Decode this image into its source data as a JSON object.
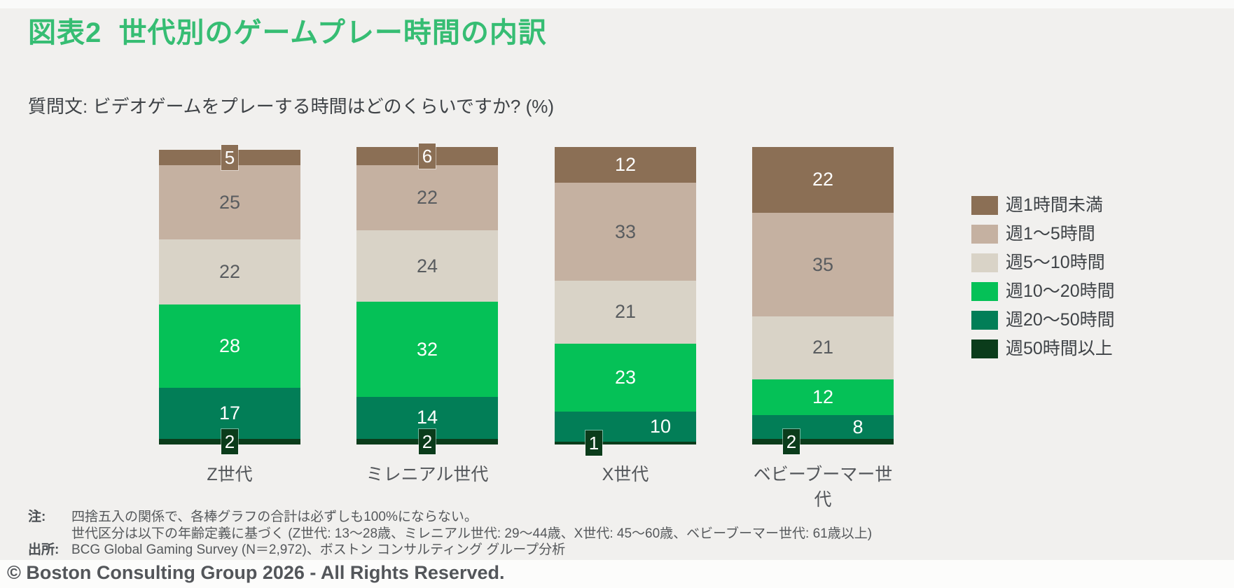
{
  "header": {
    "figure_title": "図表2  世代別のゲームプレー時間の内訳",
    "question_text": "質問文: ビデオゲームをプレーする時間はどのくらいですか? (%)"
  },
  "colors": {
    "title_green": "#36bd73",
    "page_background": "#f1f0ee",
    "footer_background": "#fcfcfb",
    "dark_value_label": "#595c5f",
    "light_value_label": "#ffffff"
  },
  "chart_data": {
    "type": "bar",
    "variant": "stacked-100",
    "orientation": "vertical",
    "unit": "%",
    "value_labels": true,
    "grid": false,
    "axes_visible": false,
    "ylim": [
      0,
      100
    ],
    "legend_position": "right",
    "categories": [
      "Z世代",
      "ミレニアル世代",
      "X世代",
      "ベビーブーマー世代"
    ],
    "series": [
      {
        "name": "週1時間未満",
        "color": "#8b6f55",
        "label_color": "#ffffff",
        "values": [
          5,
          6,
          12,
          22
        ]
      },
      {
        "name": "週1～5時間",
        "color": "#c5b1a1",
        "label_color": "#595c5f",
        "values": [
          25,
          22,
          33,
          35
        ]
      },
      {
        "name": "週5～10時間",
        "color": "#d9d3c7",
        "label_color": "#595c5f",
        "values": [
          22,
          24,
          21,
          21
        ]
      },
      {
        "name": "週10～20時間",
        "color": "#05c157",
        "label_color": "#ffffff",
        "values": [
          28,
          32,
          23,
          12
        ]
      },
      {
        "name": "週20～50時間",
        "color": "#027e57",
        "label_color": "#ffffff",
        "values": [
          17,
          14,
          10,
          8
        ]
      },
      {
        "name": "週50時間以上",
        "color": "#0b3c1b",
        "label_color": "#ffffff",
        "values": [
          2,
          2,
          1,
          2
        ]
      }
    ]
  },
  "notes": {
    "note_label": "注:",
    "note_lines": [
      "四捨五入の関係で、各棒グラフの合計は必ずしも100%にならない。",
      "世代区分は以下の年齢定義に基づく (Z世代: 13～28歳、ミレニアル世代: 29～44歳、X世代: 45～60歳、ベビーブーマー世代: 61歳以上)"
    ],
    "source_label": "出所:",
    "source_text": "BCG Global Gaming Survey (N＝2,972)、ボストン コンサルティング グループ分析"
  },
  "footer": {
    "copyright": "© Boston Consulting Group 2026 - All Rights Reserved."
  }
}
